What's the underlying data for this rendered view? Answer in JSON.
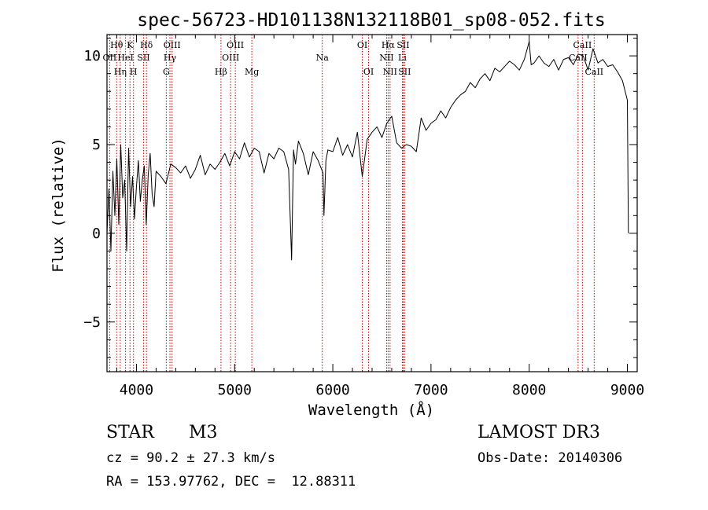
{
  "chart_data": {
    "type": "line",
    "title": "spec-56723-HD101138N132118B01_sp08-052.fits",
    "xlabel": "Wavelength (Å)",
    "ylabel": "Flux (relative)",
    "xlim": [
      3700,
      9100
    ],
    "ylim": [
      -7.8,
      11.2
    ],
    "x_ticks": [
      {
        "value": 4000,
        "label": "4000"
      },
      {
        "value": 5000,
        "label": "5000"
      },
      {
        "value": 6000,
        "label": "6000"
      },
      {
        "value": 7000,
        "label": "7000"
      },
      {
        "value": 8000,
        "label": "8000"
      },
      {
        "value": 9000,
        "label": "9000"
      }
    ],
    "y_ticks": [
      {
        "value": -5,
        "label": "−5"
      },
      {
        "value": 0,
        "label": "0"
      },
      {
        "value": 5,
        "label": "5"
      },
      {
        "value": 10,
        "label": "10"
      }
    ],
    "lines": [
      {
        "wl": 3727,
        "label": "OII",
        "row": 1
      },
      {
        "wl": 3798,
        "label": "Hθ",
        "row": 0
      },
      {
        "wl": 3835,
        "label": "Hη",
        "row": 2
      },
      {
        "wl": 3889,
        "label": "HeI",
        "row": 1
      },
      {
        "wl": 3934,
        "label": "K",
        "row": 0
      },
      {
        "wl": 3970,
        "label": "H",
        "row": 2
      },
      {
        "wl": 4072,
        "label": "SII",
        "row": 1
      },
      {
        "wl": 4102,
        "label": "Hδ",
        "row": 0
      },
      {
        "wl": 4304,
        "label": "G",
        "row": 2
      },
      {
        "wl": 4341,
        "label": "Hγ",
        "row": 1
      },
      {
        "wl": 4363,
        "label": "OIII",
        "row": 0
      },
      {
        "wl": 4861,
        "label": "Hβ",
        "row": 2
      },
      {
        "wl": 4959,
        "label": "OIII",
        "row": 1
      },
      {
        "wl": 5007,
        "label": "OIII",
        "row": 0
      },
      {
        "wl": 5175,
        "label": "Mg",
        "row": 2
      },
      {
        "wl": 5893,
        "label": "Na",
        "row": 1
      },
      {
        "wl": 6300,
        "label": "OI",
        "row": 0
      },
      {
        "wl": 6364,
        "label": "OI",
        "row": 2
      },
      {
        "wl": 6548,
        "label": "NII",
        "row": 1
      },
      {
        "wl": 6563,
        "label": "Hα",
        "row": 0
      },
      {
        "wl": 6583,
        "label": "NII",
        "row": 2
      },
      {
        "wl": 6708,
        "label": "Li",
        "row": 1
      },
      {
        "wl": 6716,
        "label": "SII",
        "row": 0
      },
      {
        "wl": 6731,
        "label": "SII",
        "row": 2
      },
      {
        "wl": 8498,
        "label": "CaII",
        "row": 1
      },
      {
        "wl": 8542,
        "label": "CaII",
        "row": 0
      },
      {
        "wl": 8662,
        "label": "CaII",
        "row": 2
      }
    ],
    "series": [
      {
        "name": "flux",
        "x": [
          3700,
          3720,
          3740,
          3760,
          3780,
          3800,
          3820,
          3840,
          3860,
          3880,
          3900,
          3920,
          3940,
          3960,
          3980,
          4000,
          4020,
          4040,
          4060,
          4080,
          4100,
          4120,
          4140,
          4160,
          4180,
          4200,
          4250,
          4300,
          4350,
          4400,
          4450,
          4500,
          4550,
          4600,
          4650,
          4700,
          4750,
          4800,
          4850,
          4900,
          4950,
          5000,
          5050,
          5100,
          5150,
          5200,
          5250,
          5300,
          5350,
          5400,
          5450,
          5500,
          5550,
          5580,
          5600,
          5620,
          5650,
          5700,
          5750,
          5800,
          5850,
          5900,
          5910,
          5930,
          5950,
          6000,
          6050,
          6100,
          6150,
          6200,
          6250,
          6300,
          6350,
          6400,
          6450,
          6500,
          6550,
          6600,
          6650,
          6700,
          6750,
          6800,
          6850,
          6900,
          6950,
          7000,
          7050,
          7100,
          7150,
          7200,
          7250,
          7300,
          7350,
          7400,
          7450,
          7500,
          7550,
          7600,
          7650,
          7700,
          7750,
          7800,
          7850,
          7900,
          7950,
          8000,
          8020,
          8050,
          8100,
          8150,
          8200,
          8250,
          8300,
          8350,
          8400,
          8450,
          8500,
          8550,
          8600,
          8650,
          8700,
          8750,
          8800,
          8850,
          8900,
          8950,
          9000,
          9010
        ],
        "y": [
          0,
          2.5,
          -1,
          3.5,
          1,
          4.2,
          0.5,
          5,
          2,
          3,
          -1,
          4.8,
          1.5,
          3.2,
          0.8,
          2.6,
          4.1,
          1.8,
          3,
          3.8,
          0.5,
          3.3,
          4.5,
          2.2,
          1.5,
          3.5,
          3.2,
          2.8,
          3.9,
          3.7,
          3.4,
          3.8,
          3.1,
          3.6,
          4.4,
          3.3,
          3.9,
          3.6,
          4,
          4.5,
          3.8,
          4.6,
          4.2,
          5.1,
          4.3,
          4.8,
          4.6,
          3.4,
          4.5,
          4.2,
          4.8,
          4.6,
          3.6,
          -1.5,
          4.7,
          3.9,
          5.2,
          4.5,
          3.3,
          4.6,
          4.1,
          3.4,
          1,
          4.1,
          4.7,
          4.6,
          5.4,
          4.4,
          5,
          4.3,
          5.7,
          3.2,
          5.3,
          5.7,
          6,
          5.4,
          6.2,
          6.6,
          5.1,
          4.8,
          5,
          4.9,
          4.6,
          6.5,
          5.8,
          6.2,
          6.4,
          6.9,
          6.5,
          7.1,
          7.5,
          7.8,
          8,
          8.5,
          8.2,
          8.7,
          9,
          8.6,
          9.3,
          9.1,
          9.4,
          9.7,
          9.5,
          9.2,
          9.8,
          10.8,
          9.5,
          9.6,
          10,
          9.6,
          9.4,
          9.8,
          9.2,
          9.8,
          9.9,
          9.5,
          10.1,
          10,
          9.2,
          10.4,
          9.6,
          9.8,
          9.4,
          9.5,
          9.1,
          8.6,
          7.5,
          0
        ]
      }
    ]
  },
  "footer": {
    "object_class": "STAR",
    "subclass": "M3",
    "cz": "cz = 90.2 ± 27.3 km/s",
    "coords": "RA = 153.97762, DEC =  12.88311",
    "survey": "LAMOST DR3",
    "obs_date": "Obs-Date: 20140306"
  },
  "colors": {
    "axis": "#000000",
    "spectrum": "#000000",
    "line_marker": "#c40000"
  }
}
